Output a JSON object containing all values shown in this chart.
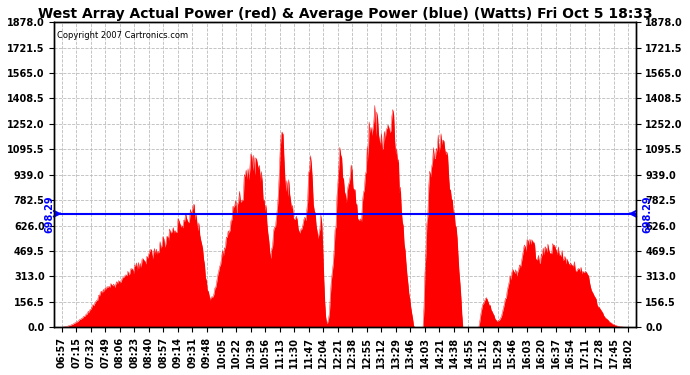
{
  "title": "West Array Actual Power (red) & Average Power (blue) (Watts) Fri Oct 5 18:33",
  "copyright": "Copyright 2007 Cartronics.com",
  "avg_power": 698.29,
  "ymax": 1878.0,
  "yticks": [
    0.0,
    156.5,
    313.0,
    469.5,
    626.0,
    782.5,
    939.0,
    1095.5,
    1252.0,
    1408.5,
    1565.0,
    1721.5,
    1878.0
  ],
  "xtick_labels": [
    "06:57",
    "07:15",
    "07:32",
    "07:49",
    "08:06",
    "08:23",
    "08:40",
    "08:57",
    "09:14",
    "09:31",
    "09:48",
    "10:05",
    "10:22",
    "10:39",
    "10:56",
    "11:13",
    "11:30",
    "11:47",
    "12:04",
    "12:21",
    "12:38",
    "12:55",
    "13:12",
    "13:29",
    "13:46",
    "14:03",
    "14:21",
    "14:38",
    "14:55",
    "15:12",
    "15:29",
    "15:46",
    "16:03",
    "16:20",
    "16:37",
    "16:54",
    "17:11",
    "17:28",
    "17:45",
    "18:02"
  ],
  "num_xticks": 40,
  "num_points": 600,
  "fill_color": "#FF0000",
  "line_color": "#0000FF",
  "bg_color": "#FFFFFF",
  "grid_color": "#BBBBBB",
  "title_fontsize": 10,
  "tick_fontsize": 7,
  "copyright_fontsize": 6,
  "avg_label_color": "#0000FF",
  "avg_label_fontsize": 7
}
